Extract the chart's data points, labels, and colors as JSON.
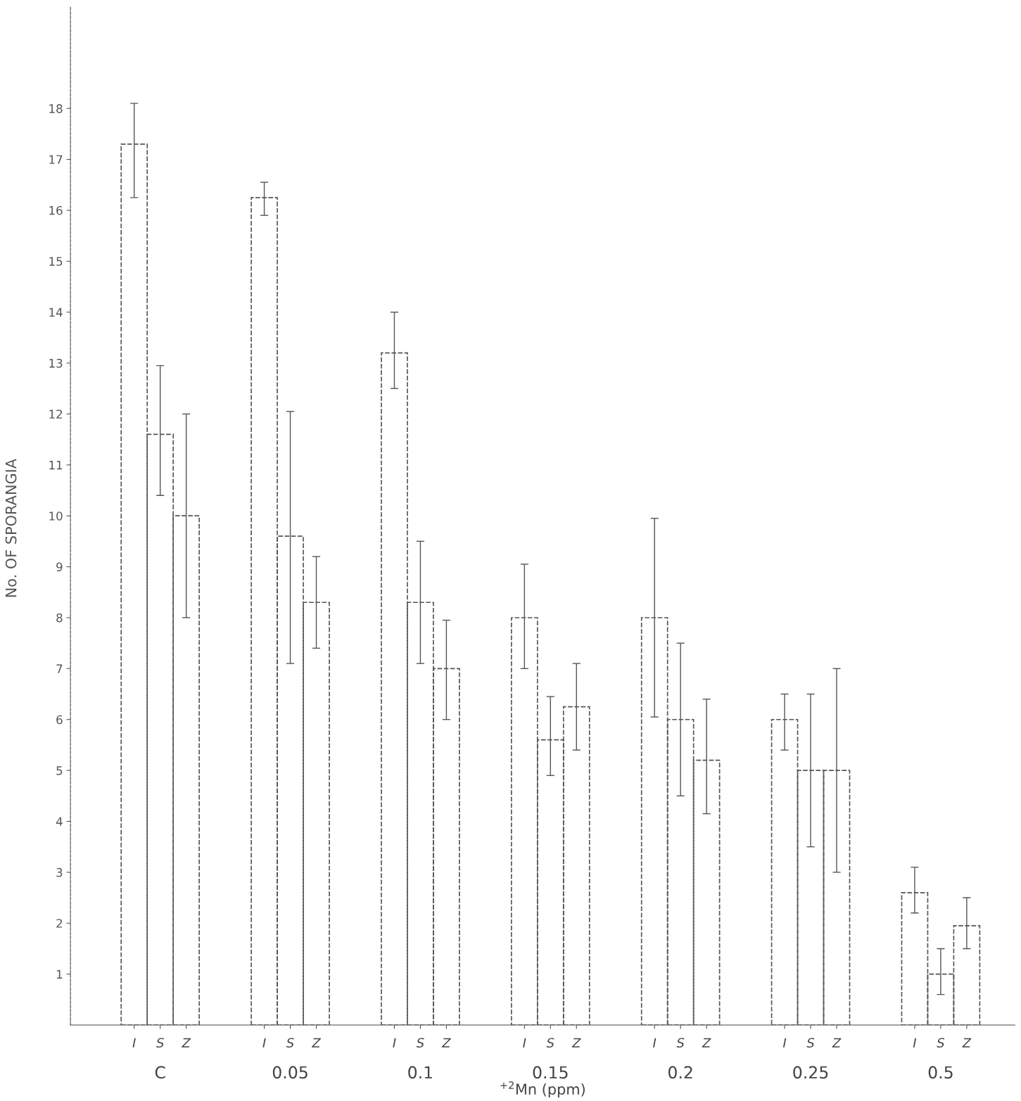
{
  "chart_data": {
    "type": "bar",
    "xlabel": "$^{+2}$Mn (ppm)",
    "ylabel": "No. OF SPORANGIA",
    "categories": [
      "C",
      "0.05",
      "0.1",
      "0.15",
      "0.2",
      "0.25",
      "0.5"
    ],
    "series": [
      {
        "name": "I",
        "color": "#555555",
        "values": [
          17.3,
          16.25,
          13.2,
          8.0,
          8.0,
          6.0,
          2.6
        ],
        "errors": [
          [
            16.25,
            18.1
          ],
          [
            15.9,
            16.55
          ],
          [
            12.5,
            14.0
          ],
          [
            7.0,
            9.05
          ],
          [
            6.05,
            9.95
          ],
          [
            5.4,
            6.5
          ],
          [
            2.2,
            3.1
          ]
        ]
      },
      {
        "name": "S",
        "color": "#555555",
        "values": [
          11.6,
          9.6,
          8.3,
          5.6,
          6.0,
          5.0,
          1.0
        ],
        "errors": [
          [
            10.4,
            12.95
          ],
          [
            7.1,
            12.05
          ],
          [
            7.1,
            9.5
          ],
          [
            4.9,
            6.45
          ],
          [
            4.5,
            7.5
          ],
          [
            3.5,
            6.5
          ],
          [
            0.6,
            1.5
          ]
        ]
      },
      {
        "name": "Z",
        "color": "#555555",
        "values": [
          10.0,
          8.3,
          7.0,
          6.25,
          5.2,
          5.0,
          1.95
        ],
        "errors": [
          [
            8.0,
            12.0
          ],
          [
            7.4,
            9.2
          ],
          [
            6.0,
            7.95
          ],
          [
            5.4,
            7.1
          ],
          [
            4.15,
            6.4
          ],
          [
            3.0,
            7.0
          ],
          [
            1.5,
            2.5
          ]
        ]
      }
    ],
    "ylim": [
      0,
      20
    ],
    "yticks": [
      1,
      2,
      3,
      4,
      5,
      6,
      7,
      8,
      9,
      10,
      11,
      12,
      13,
      14,
      15,
      16,
      17,
      18
    ],
    "grid": false,
    "legend": false
  }
}
